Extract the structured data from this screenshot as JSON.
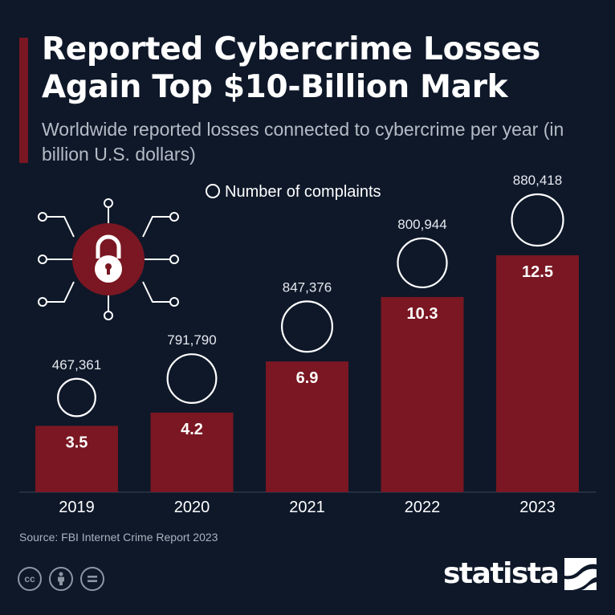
{
  "header": {
    "title": "Reported Cybercrime Losses Again Top $10-Billion Mark",
    "subtitle": "Worldwide reported losses connected to cybercrime per year (in billion U.S. dollars)"
  },
  "colors": {
    "background": "#0e1829",
    "bar": "#7a1722",
    "accent": "#7a1722",
    "text": "#ffffff"
  },
  "chart_data": {
    "type": "bar",
    "title": "Reported Cybercrime Losses Again Top $10-Billion Mark",
    "subtitle": "Worldwide reported losses connected to cybercrime per year (in billion U.S. dollars)",
    "categories": [
      "2019",
      "2020",
      "2021",
      "2022",
      "2023"
    ],
    "values": [
      3.5,
      4.2,
      6.9,
      10.3,
      12.5
    ],
    "value_labels": [
      "3.5",
      "4.2",
      "6.9",
      "10.3",
      "12.5"
    ],
    "complaints": [
      467361,
      791790,
      847376,
      800944,
      880418
    ],
    "complaint_labels": [
      "467,361",
      "791,790",
      "847,376",
      "800,944",
      "880,418"
    ],
    "legend": "Number of complaints",
    "legend_position": "top-center",
    "grid": false,
    "ylim": [
      0,
      12.5
    ]
  },
  "illustration": {
    "icon": "padlock-network-icon"
  },
  "footer": {
    "source": "Source: FBI Internet Crime Report 2023",
    "license_icons": [
      "cc-icon",
      "attribution-icon",
      "no-derivatives-icon"
    ],
    "logo": "statista"
  }
}
